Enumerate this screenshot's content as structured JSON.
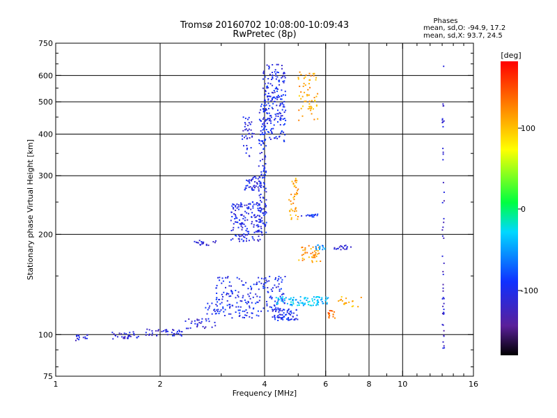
{
  "title_line1": "Tromsø 20160702 10:08:00-10:09:43",
  "title_line2": "RwPretec (8p)",
  "stats": {
    "heading": "Phases",
    "line1": "mean, sd,O: -94.9, 17.2",
    "line2": "mean, sd,X:  93.7, 24.5"
  },
  "colorbar": {
    "label": "[deg]",
    "ticks": [
      "100",
      "0",
      "-100"
    ]
  },
  "chart_data": {
    "type": "scatter",
    "xlabel": "Frequency [MHz]",
    "ylabel": "Stationary phase Virtual Height [km]",
    "xscale": "log",
    "yscale": "log",
    "xlim": [
      1,
      16
    ],
    "ylim": [
      75,
      750
    ],
    "x_ticks": [
      1,
      2,
      4,
      6,
      8,
      10,
      16
    ],
    "x_tick_labels": [
      "1",
      "2",
      "4",
      "6",
      "8",
      "10",
      "16"
    ],
    "x_grid": [
      2,
      4,
      6,
      8,
      10
    ],
    "y_ticks": [
      75,
      100,
      200,
      300,
      400,
      500,
      600,
      750
    ],
    "y_tick_labels": [
      "75",
      "100",
      "200",
      "300",
      "400",
      "500",
      "600",
      "750"
    ],
    "y_grid": [
      100,
      200,
      300,
      400,
      500,
      600
    ],
    "grid": true,
    "color_variable": "phase [deg]",
    "color_range": [
      -180,
      180
    ],
    "clusters": [
      {
        "freq": [
          1.14,
          1.24
        ],
        "height": [
          96,
          100
        ],
        "phase": -110,
        "n": 16
      },
      {
        "freq": [
          1.45,
          1.75
        ],
        "height": [
          97,
          102
        ],
        "phase": -110,
        "n": 30
      },
      {
        "freq": [
          1.82,
          2.35
        ],
        "height": [
          99,
          104
        ],
        "phase": -110,
        "n": 40
      },
      {
        "freq": [
          2.35,
          2.9
        ],
        "height": [
          104,
          112
        ],
        "phase": -110,
        "n": 30
      },
      {
        "freq": [
          2.5,
          2.9
        ],
        "height": [
          185,
          192
        ],
        "phase": -110,
        "n": 18
      },
      {
        "freq": [
          2.7,
          3.2
        ],
        "height": [
          115,
          125
        ],
        "phase": -95,
        "n": 25
      },
      {
        "freq": [
          2.9,
          4.6
        ],
        "height": [
          112,
          150
        ],
        "phase": -100,
        "n": 200
      },
      {
        "freq": [
          3.2,
          3.95
        ],
        "height": [
          190,
          250
        ],
        "phase": -105,
        "n": 150
      },
      {
        "freq": [
          3.5,
          3.9
        ],
        "height": [
          270,
          300
        ],
        "phase": -105,
        "n": 45
      },
      {
        "freq": [
          3.45,
          3.75
        ],
        "height": [
          340,
          450
        ],
        "phase": -110,
        "n": 40
      },
      {
        "freq": [
          3.85,
          4.05
        ],
        "height": [
          200,
          500
        ],
        "phase": -100,
        "n": 130
      },
      {
        "freq": [
          3.95,
          4.6
        ],
        "height": [
          380,
          650
        ],
        "phase": -100,
        "n": 200
      },
      {
        "freq": [
          4.2,
          5.0
        ],
        "height": [
          110,
          120
        ],
        "phase": -100,
        "n": 60
      },
      {
        "freq": [
          4.3,
          6.1
        ],
        "height": [
          122,
          130
        ],
        "phase": -40,
        "n": 90
      },
      {
        "freq": [
          4.7,
          5.0
        ],
        "height": [
          220,
          300
        ],
        "phase": 110,
        "n": 40
      },
      {
        "freq": [
          5.0,
          5.7
        ],
        "height": [
          440,
          620
        ],
        "phase": 110,
        "n": 60
      },
      {
        "freq": [
          5.0,
          5.8
        ],
        "height": [
          165,
          185
        ],
        "phase": 115,
        "n": 45
      },
      {
        "freq": [
          5.1,
          5.7
        ],
        "height": [
          225,
          230
        ],
        "phase": -90,
        "n": 18
      },
      {
        "freq": [
          5.6,
          6.0
        ],
        "height": [
          180,
          186
        ],
        "phase": -60,
        "n": 15
      },
      {
        "freq": [
          6.1,
          6.4
        ],
        "height": [
          112,
          118
        ],
        "phase": 130,
        "n": 15
      },
      {
        "freq": [
          6.3,
          7.1
        ],
        "height": [
          180,
          186
        ],
        "phase": -110,
        "n": 18
      },
      {
        "freq": [
          6.4,
          7.6
        ],
        "height": [
          120,
          130
        ],
        "phase": 110,
        "n": 18
      },
      {
        "freq": [
          13.0,
          13.2
        ],
        "height": [
          90,
          680
        ],
        "phase": -120,
        "n": 50
      }
    ]
  }
}
